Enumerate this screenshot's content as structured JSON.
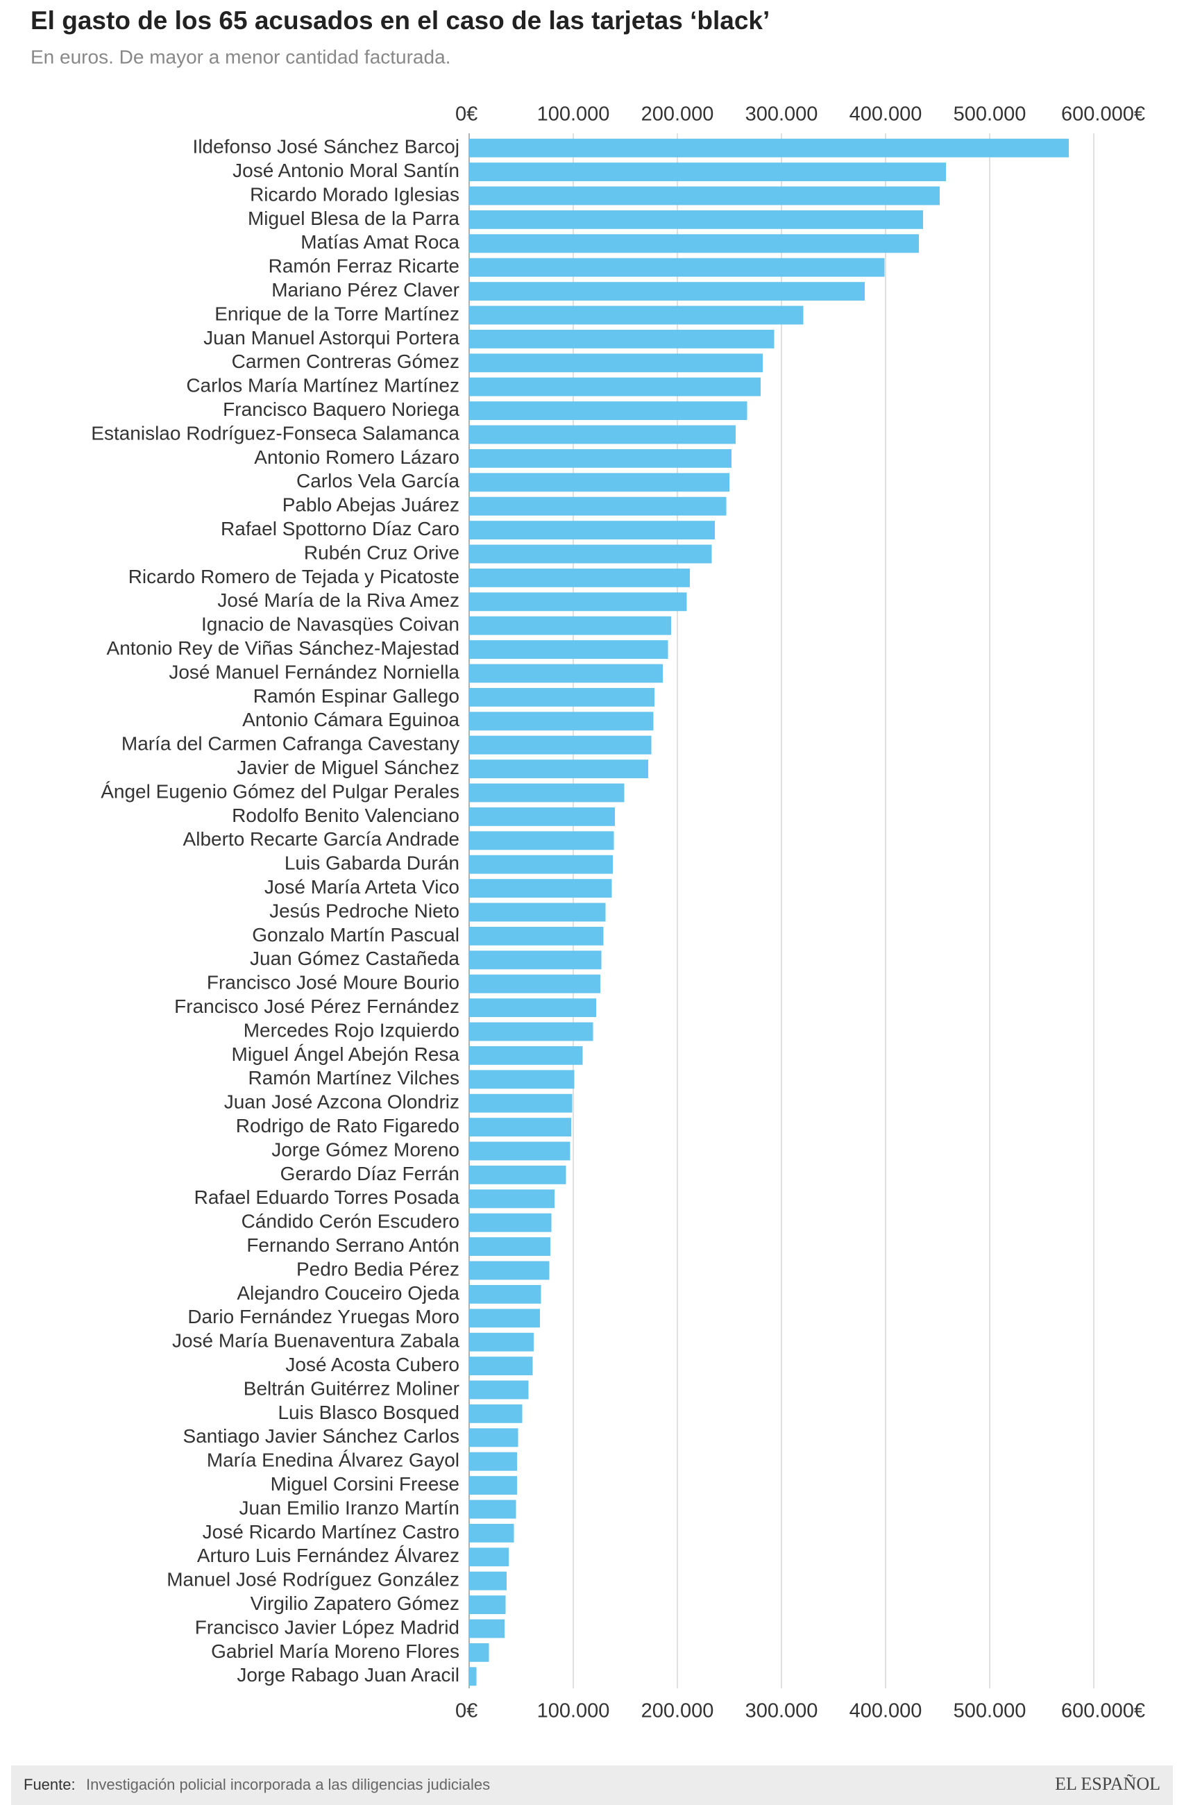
{
  "chart_data": {
    "type": "hbar",
    "title": "El gasto de los 65 acusados en el caso de las tarjetas ‘black’",
    "subtitle": "En euros. De mayor a menor cantidad facturada.",
    "categories": [
      "Ildefonso José Sánchez Barcoj",
      "José Antonio Moral Santín",
      "Ricardo Morado Iglesias",
      "Miguel Blesa de la Parra",
      "Matías Amat Roca",
      "Ramón Ferraz Ricarte",
      "Mariano Pérez Claver",
      "Enrique de la Torre Martínez",
      "Juan Manuel Astorqui Portera",
      "Carmen Contreras Gómez",
      "Carlos María Martínez Martínez",
      "Francisco Baquero Noriega",
      "Estanislao Rodríguez-Fonseca Salamanca",
      "Antonio Romero Lázaro",
      "Carlos Vela García",
      "Pablo Abejas Juárez",
      "Rafael Spottorno Díaz Caro",
      "Rubén Cruz Orive",
      "Ricardo Romero de Tejada y Picatoste",
      "José María de la Riva Amez",
      "Ignacio de Navasqües Coivan",
      "Antonio Rey de Viñas Sánchez-Majestad",
      "José Manuel Fernández Norniella",
      "Ramón Espinar Gallego",
      "Antonio Cámara Eguinoa",
      "María del Carmen Cafranga Cavestany",
      "Javier de Miguel Sánchez",
      "Ángel Eugenio Gómez del Pulgar Perales",
      "Rodolfo Benito Valenciano",
      "Alberto Recarte García Andrade",
      "Luis Gabarda Durán",
      "José María Arteta Vico",
      "Jesús Pedroche Nieto",
      "Gonzalo Martín Pascual",
      "Juan Gómez Castañeda",
      "Francisco José Moure Bourio",
      "Francisco José Pérez Fernández",
      "Mercedes Rojo Izquierdo",
      "Miguel Ángel Abejón Resa",
      "Ramón Martínez Vilches",
      "Juan José Azcona Olondriz",
      "Rodrigo de Rato Figaredo",
      "Jorge Gómez Moreno",
      "Gerardo Díaz Ferrán",
      "Rafael Eduardo Torres Posada",
      "Cándido Cerón Escudero",
      "Fernando Serrano Antón",
      "Pedro Bedia Pérez",
      "Alejandro Couceiro Ojeda",
      "Dario Fernández Yruegas Moro",
      "José María Buenaventura Zabala",
      "José Acosta Cubero",
      "Beltrán Guitérrez Moliner",
      "Luis Blasco Bosqued",
      "Santiago Javier Sánchez Carlos",
      "María Enedina Álvarez Gayol",
      "Miguel Corsini Freese",
      "Juan Emilio Iranzo Martín",
      "José Ricardo Martínez Castro",
      "Arturo Luis Fernández Álvarez",
      "Manuel José Rodríguez González",
      "Virgilio Zapatero Gómez",
      "Francisco Javier López Madrid",
      "Gabriel María Moreno Flores",
      "Jorge Rabago Juan Aracil"
    ],
    "values": [
      576000,
      458000,
      452000,
      436000,
      432000,
      399000,
      380000,
      321000,
      293000,
      282000,
      280000,
      267000,
      256000,
      252000,
      250000,
      247000,
      236000,
      233000,
      212000,
      209000,
      194000,
      191000,
      186000,
      178000,
      177000,
      175000,
      172000,
      149000,
      140000,
      139000,
      138000,
      137000,
      131000,
      129000,
      127000,
      126000,
      122000,
      119000,
      109000,
      101000,
      99000,
      98000,
      97000,
      93000,
      82000,
      79000,
      78000,
      77000,
      69000,
      68000,
      62000,
      61000,
      57000,
      51000,
      47000,
      46000,
      46000,
      45000,
      43000,
      38000,
      36000,
      35000,
      34000,
      19000,
      7000
    ],
    "color": "#66c5ef",
    "xlim": [
      0,
      600000
    ],
    "xticks": [
      {
        "value": 0,
        "label": "0€"
      },
      {
        "value": 100000,
        "label": "100.000"
      },
      {
        "value": 200000,
        "label": "200.000"
      },
      {
        "value": 300000,
        "label": "300.000"
      },
      {
        "value": 400000,
        "label": "400.000"
      },
      {
        "value": 500000,
        "label": "500.000"
      },
      {
        "value": 600000,
        "label": "600.000€"
      }
    ],
    "grid": true
  },
  "footer": {
    "source_label": "Fuente:",
    "source": "Investigación policial incorporada a las diligencias judiciales",
    "brand": "EL ESPAÑOL"
  }
}
